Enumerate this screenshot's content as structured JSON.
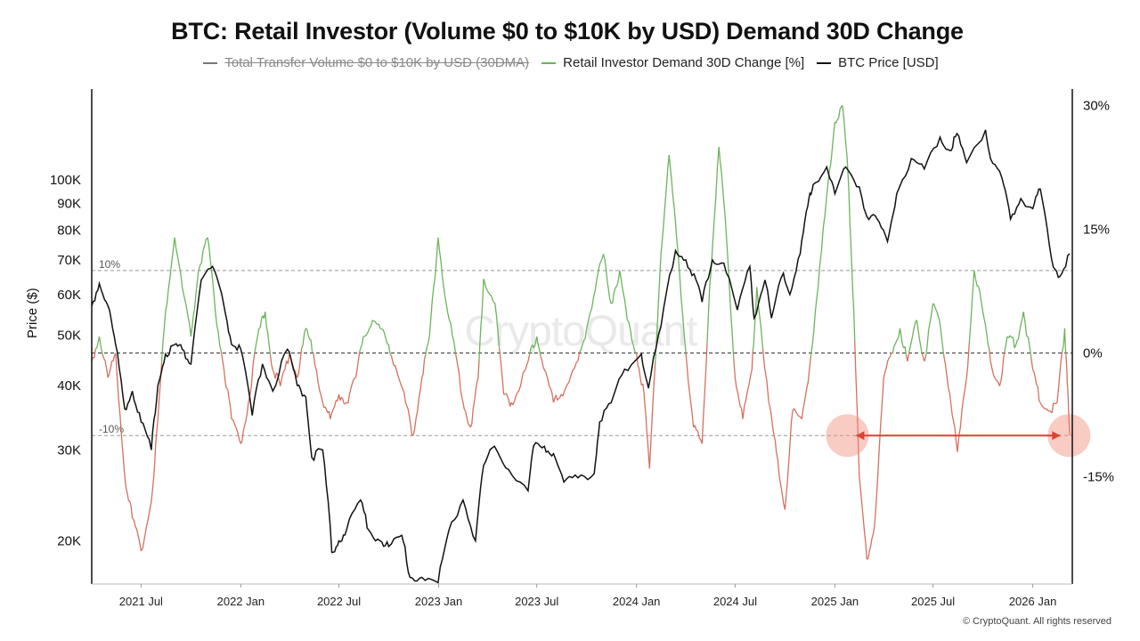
{
  "chart_data": {
    "type": "line",
    "title": "BTC: Retail Investor (Volume $0 to $10K by USD) Demand 30D Change",
    "legend": [
      {
        "name": "Total Transfer Volume  $0 to $10K by USD (30DMA)",
        "color": "#777777",
        "hidden": true
      },
      {
        "name": "Retail Investor Demand 30D Change [%]",
        "color": "#6db35c",
        "hidden": false
      },
      {
        "name": "BTC Price [USD]",
        "color": "#111111",
        "hidden": false
      }
    ],
    "legend_placement": "top-center",
    "ylabel_left": "Price ($)",
    "y_left": {
      "scale": "log",
      "range": [
        16500,
        150000
      ],
      "ticks": [
        20000,
        30000,
        40000,
        50000,
        60000,
        70000,
        80000,
        90000,
        100000
      ],
      "tick_labels": [
        "20K",
        "30K",
        "40K",
        "50K",
        "60K",
        "70K",
        "80K",
        "90K",
        "100K"
      ]
    },
    "y_right": {
      "scale": "linear",
      "range": [
        -28,
        32
      ],
      "ticks": [
        -15,
        0,
        15,
        30
      ],
      "tick_labels": [
        "-15%",
        "0%",
        "15%",
        "30%"
      ]
    },
    "x_range": [
      "2021-04-01",
      "2026-03-15"
    ],
    "x_ticks": [
      "2021-07-01",
      "2022-01-01",
      "2022-07-01",
      "2023-01-01",
      "2023-07-01",
      "2024-01-01",
      "2024-07-01",
      "2025-01-01",
      "2025-07-01",
      "2026-01-01"
    ],
    "x_tick_labels": [
      "2021 Jul",
      "2022 Jan",
      "2022 Jul",
      "2023 Jan",
      "2023 Jul",
      "2024 Jan",
      "2024 Jul",
      "2025 Jan",
      "2025 Jul",
      "2026 Jan"
    ],
    "reference_lines": [
      {
        "value": 10,
        "axis": "right",
        "label": "10%",
        "style": "dashed"
      },
      {
        "value": 0,
        "axis": "right",
        "label": "",
        "style": "dashed"
      },
      {
        "value": -10,
        "axis": "right",
        "label": "-10%",
        "style": "dashed"
      }
    ],
    "series": [
      {
        "name": "BTC Price [USD]",
        "axis": "left",
        "color": "#111111",
        "points": [
          [
            "2021-04-01",
            57000
          ],
          [
            "2021-04-15",
            63000
          ],
          [
            "2021-05-01",
            57000
          ],
          [
            "2021-05-15",
            48000
          ],
          [
            "2021-06-01",
            36000
          ],
          [
            "2021-06-15",
            39000
          ],
          [
            "2021-07-01",
            34000
          ],
          [
            "2021-07-20",
            30000
          ],
          [
            "2021-08-01",
            40000
          ],
          [
            "2021-08-15",
            46000
          ],
          [
            "2021-09-01",
            48000
          ],
          [
            "2021-09-15",
            47000
          ],
          [
            "2021-10-01",
            44000
          ],
          [
            "2021-10-20",
            64000
          ],
          [
            "2021-11-10",
            68000
          ],
          [
            "2021-12-01",
            57000
          ],
          [
            "2021-12-15",
            48000
          ],
          [
            "2022-01-01",
            47000
          ],
          [
            "2022-01-22",
            35000
          ],
          [
            "2022-02-10",
            44000
          ],
          [
            "2022-03-01",
            39000
          ],
          [
            "2022-03-28",
            47000
          ],
          [
            "2022-04-15",
            40000
          ],
          [
            "2022-05-01",
            38000
          ],
          [
            "2022-05-12",
            29000
          ],
          [
            "2022-06-01",
            30000
          ],
          [
            "2022-06-18",
            19000
          ],
          [
            "2022-07-01",
            20000
          ],
          [
            "2022-07-15",
            21000
          ],
          [
            "2022-08-10",
            24000
          ],
          [
            "2022-08-25",
            21000
          ],
          [
            "2022-09-15",
            20000
          ],
          [
            "2022-10-01",
            19500
          ],
          [
            "2022-10-25",
            20500
          ],
          [
            "2022-11-09",
            17000
          ],
          [
            "2022-12-01",
            17000
          ],
          [
            "2022-12-31",
            16600
          ],
          [
            "2023-01-20",
            21000
          ],
          [
            "2023-02-15",
            24000
          ],
          [
            "2023-03-10",
            20000
          ],
          [
            "2023-03-25",
            28000
          ],
          [
            "2023-04-14",
            30500
          ],
          [
            "2023-05-10",
            27500
          ],
          [
            "2023-06-15",
            25000
          ],
          [
            "2023-06-25",
            30500
          ],
          [
            "2023-07-15",
            30500
          ],
          [
            "2023-08-01",
            29500
          ],
          [
            "2023-08-20",
            26000
          ],
          [
            "2023-09-15",
            26500
          ],
          [
            "2023-10-15",
            27000
          ],
          [
            "2023-10-25",
            34000
          ],
          [
            "2023-11-15",
            37000
          ],
          [
            "2023-12-10",
            43000
          ],
          [
            "2024-01-10",
            46000
          ],
          [
            "2024-01-23",
            39500
          ],
          [
            "2024-02-15",
            52000
          ],
          [
            "2024-03-13",
            73000
          ],
          [
            "2024-04-01",
            70000
          ],
          [
            "2024-04-20",
            64000
          ],
          [
            "2024-05-01",
            58000
          ],
          [
            "2024-05-20",
            70000
          ],
          [
            "2024-06-10",
            69000
          ],
          [
            "2024-07-05",
            56000
          ],
          [
            "2024-07-28",
            68000
          ],
          [
            "2024-08-05",
            54000
          ],
          [
            "2024-08-25",
            64000
          ],
          [
            "2024-09-06",
            54000
          ],
          [
            "2024-09-28",
            66000
          ],
          [
            "2024-10-10",
            60000
          ],
          [
            "2024-10-29",
            72000
          ],
          [
            "2024-11-12",
            89000
          ],
          [
            "2024-11-22",
            98000
          ],
          [
            "2024-12-17",
            106000
          ],
          [
            "2025-01-01",
            94000
          ],
          [
            "2025-01-21",
            106000
          ],
          [
            "2025-02-15",
            97000
          ],
          [
            "2025-03-01",
            85000
          ],
          [
            "2025-03-20",
            84000
          ],
          [
            "2025-04-08",
            76000
          ],
          [
            "2025-04-25",
            94000
          ],
          [
            "2025-05-22",
            110000
          ],
          [
            "2025-06-15",
            105000
          ],
          [
            "2025-07-14",
            121000
          ],
          [
            "2025-08-01",
            114000
          ],
          [
            "2025-08-14",
            123000
          ],
          [
            "2025-09-01",
            108000
          ],
          [
            "2025-10-06",
            125000
          ],
          [
            "2025-10-15",
            110000
          ],
          [
            "2025-11-05",
            101000
          ],
          [
            "2025-11-21",
            84000
          ],
          [
            "2025-12-10",
            92000
          ],
          [
            "2026-01-01",
            88000
          ],
          [
            "2026-01-15",
            96000
          ],
          [
            "2026-02-05",
            70000
          ],
          [
            "2026-02-20",
            65000
          ],
          [
            "2026-03-10",
            72000
          ]
        ]
      },
      {
        "name": "Retail Investor Demand 30D Change [%]",
        "axis": "right",
        "color_positive": "#6db35c",
        "color_negative": "#d4705f",
        "points": [
          [
            "2021-04-01",
            -1
          ],
          [
            "2021-04-15",
            2
          ],
          [
            "2021-05-01",
            -3
          ],
          [
            "2021-05-15",
            0
          ],
          [
            "2021-06-01",
            -15
          ],
          [
            "2021-06-15",
            -20
          ],
          [
            "2021-07-01",
            -24
          ],
          [
            "2021-07-20",
            -18
          ],
          [
            "2021-08-01",
            -8
          ],
          [
            "2021-08-15",
            5
          ],
          [
            "2021-09-01",
            14
          ],
          [
            "2021-09-15",
            8
          ],
          [
            "2021-10-01",
            2
          ],
          [
            "2021-10-15",
            10
          ],
          [
            "2021-11-01",
            14
          ],
          [
            "2021-11-15",
            5
          ],
          [
            "2021-12-01",
            -2
          ],
          [
            "2021-12-15",
            -8
          ],
          [
            "2022-01-01",
            -11
          ],
          [
            "2022-01-15",
            -6
          ],
          [
            "2022-02-01",
            2
          ],
          [
            "2022-02-15",
            5
          ],
          [
            "2022-03-01",
            -2
          ],
          [
            "2022-03-15",
            -4
          ],
          [
            "2022-04-01",
            0
          ],
          [
            "2022-04-15",
            -3
          ],
          [
            "2022-05-01",
            3
          ],
          [
            "2022-05-15",
            0
          ],
          [
            "2022-06-01",
            -6
          ],
          [
            "2022-06-15",
            -8
          ],
          [
            "2022-07-01",
            -5
          ],
          [
            "2022-07-15",
            -6
          ],
          [
            "2022-08-01",
            -3
          ],
          [
            "2022-08-15",
            2
          ],
          [
            "2022-09-01",
            4
          ],
          [
            "2022-09-15",
            3
          ],
          [
            "2022-10-01",
            1
          ],
          [
            "2022-10-15",
            -2
          ],
          [
            "2022-11-01",
            -6
          ],
          [
            "2022-11-15",
            -10
          ],
          [
            "2022-12-01",
            -3
          ],
          [
            "2022-12-15",
            2
          ],
          [
            "2022-12-31",
            14
          ],
          [
            "2023-01-15",
            6
          ],
          [
            "2023-02-01",
            0
          ],
          [
            "2023-02-15",
            -6
          ],
          [
            "2023-03-01",
            -9
          ],
          [
            "2023-03-15",
            -3
          ],
          [
            "2023-03-25",
            9
          ],
          [
            "2023-04-15",
            6
          ],
          [
            "2023-05-01",
            -5
          ],
          [
            "2023-05-15",
            -6
          ],
          [
            "2023-06-01",
            -4
          ],
          [
            "2023-06-15",
            -1
          ],
          [
            "2023-07-01",
            2
          ],
          [
            "2023-07-15",
            -2
          ],
          [
            "2023-08-01",
            -6
          ],
          [
            "2023-08-15",
            -5
          ],
          [
            "2023-09-01",
            -3
          ],
          [
            "2023-09-15",
            -1
          ],
          [
            "2023-10-01",
            3
          ],
          [
            "2023-10-20",
            9
          ],
          [
            "2023-11-01",
            12
          ],
          [
            "2023-11-15",
            6
          ],
          [
            "2023-12-01",
            10
          ],
          [
            "2023-12-15",
            4
          ],
          [
            "2024-01-01",
            0
          ],
          [
            "2024-01-15",
            -5
          ],
          [
            "2024-01-25",
            -14
          ],
          [
            "2024-02-15",
            12
          ],
          [
            "2024-03-01",
            24
          ],
          [
            "2024-03-15",
            14
          ],
          [
            "2024-04-01",
            0
          ],
          [
            "2024-04-15",
            -9
          ],
          [
            "2024-05-01",
            -11
          ],
          [
            "2024-05-15",
            8
          ],
          [
            "2024-06-01",
            25
          ],
          [
            "2024-06-15",
            14
          ],
          [
            "2024-07-01",
            -3
          ],
          [
            "2024-07-15",
            -8
          ],
          [
            "2024-08-01",
            -2
          ],
          [
            "2024-08-10",
            8
          ],
          [
            "2024-09-01",
            -6
          ],
          [
            "2024-09-15",
            -12
          ],
          [
            "2024-10-01",
            -19
          ],
          [
            "2024-10-15",
            -7
          ],
          [
            "2024-11-01",
            -8
          ],
          [
            "2024-11-15",
            -2
          ],
          [
            "2024-12-01",
            8
          ],
          [
            "2024-12-20",
            21
          ],
          [
            "2025-01-01",
            28
          ],
          [
            "2025-01-15",
            30
          ],
          [
            "2025-01-25",
            22
          ],
          [
            "2025-02-05",
            5
          ],
          [
            "2025-02-15",
            -15
          ],
          [
            "2025-03-01",
            -25
          ],
          [
            "2025-03-15",
            -21
          ],
          [
            "2025-04-01",
            -3
          ],
          [
            "2025-04-15",
            0
          ],
          [
            "2025-05-01",
            3
          ],
          [
            "2025-05-15",
            -1
          ],
          [
            "2025-06-01",
            4
          ],
          [
            "2025-06-15",
            -1
          ],
          [
            "2025-07-01",
            6
          ],
          [
            "2025-07-15",
            3
          ],
          [
            "2025-08-01",
            -5
          ],
          [
            "2025-08-15",
            -12
          ],
          [
            "2025-09-01",
            -3
          ],
          [
            "2025-09-15",
            10
          ],
          [
            "2025-10-01",
            5
          ],
          [
            "2025-10-15",
            -1
          ],
          [
            "2025-11-01",
            -4
          ],
          [
            "2025-11-15",
            2
          ],
          [
            "2025-12-01",
            1
          ],
          [
            "2025-12-15",
            5
          ],
          [
            "2026-01-01",
            -2
          ],
          [
            "2026-01-15",
            -6
          ],
          [
            "2026-02-01",
            -7
          ],
          [
            "2026-02-15",
            -6
          ],
          [
            "2026-03-01",
            3
          ],
          [
            "2026-03-05",
            -2
          ],
          [
            "2026-03-10",
            -10
          ]
        ]
      }
    ],
    "annotations": [
      {
        "type": "highlight-circle",
        "x": "2025-01-24",
        "y": -10,
        "axis": "right"
      },
      {
        "type": "highlight-circle",
        "x": "2026-03-09",
        "y": -10,
        "axis": "right"
      },
      {
        "type": "double-arrow",
        "from": "2025-01-24",
        "to": "2026-03-09",
        "y": -10,
        "axis": "right"
      }
    ],
    "watermark": "CryptoQuant"
  },
  "footer": "© CryptoQuant. All rights reserved"
}
